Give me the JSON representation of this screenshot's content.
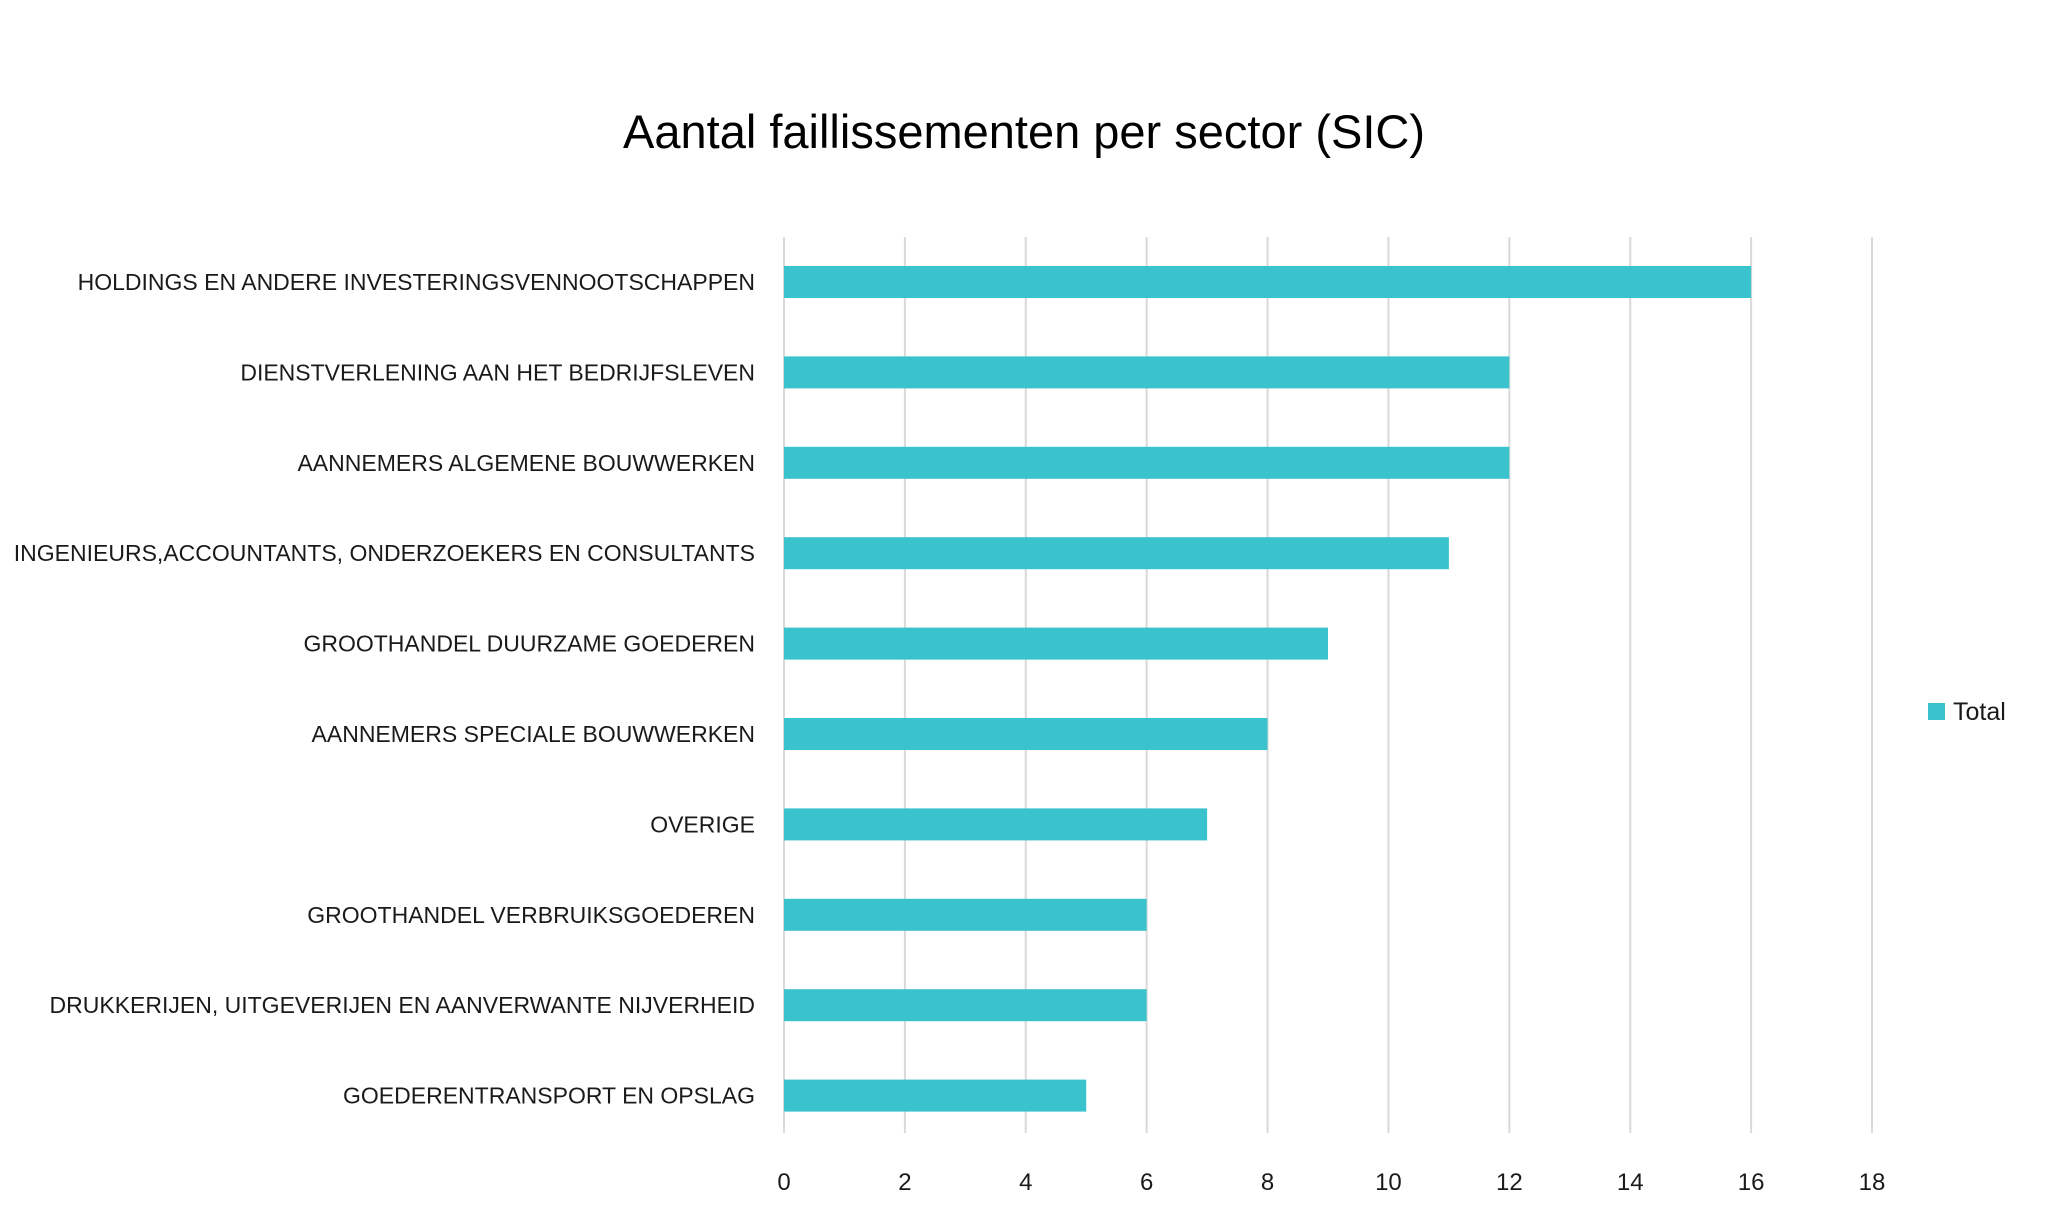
{
  "chart_data": {
    "type": "bar",
    "orientation": "horizontal",
    "title": "Aantal faillissementen per sector (SIC)",
    "xlabel": "",
    "ylabel": "",
    "categories": [
      "HOLDINGS EN ANDERE INVESTERINGSVENNOOTSCHAPPEN",
      "DIENSTVERLENING AAN HET BEDRIJFSLEVEN",
      "AANNEMERS ALGEMENE BOUWWERKEN",
      "INGENIEURS,ACCOUNTANTS, ONDERZOEKERS EN CONSULTANTS",
      "GROOTHANDEL DUURZAME GOEDEREN",
      "AANNEMERS SPECIALE BOUWWERKEN",
      "OVERIGE",
      "GROOTHANDEL VERBRUIKSGOEDEREN",
      "DRUKKERIJEN, UITGEVERIJEN EN AANVERWANTE NIJVERHEID",
      "GOEDERENTRANSPORT EN OPSLAG"
    ],
    "series": [
      {
        "name": "Total",
        "color": "#3ac2cd",
        "values": [
          16,
          12,
          12,
          11,
          9,
          8,
          7,
          6,
          6,
          5
        ]
      }
    ],
    "xlim": [
      0,
      18
    ],
    "xticks": [
      "0",
      "2",
      "4",
      "6",
      "8",
      "10",
      "12",
      "14",
      "16",
      "18"
    ],
    "grid": true,
    "legend_position": "right"
  },
  "colors": {
    "bar": "#3ac2cd",
    "grid": "#d9d9d9",
    "text": "#1a1a1a",
    "background": "#ffffff"
  }
}
